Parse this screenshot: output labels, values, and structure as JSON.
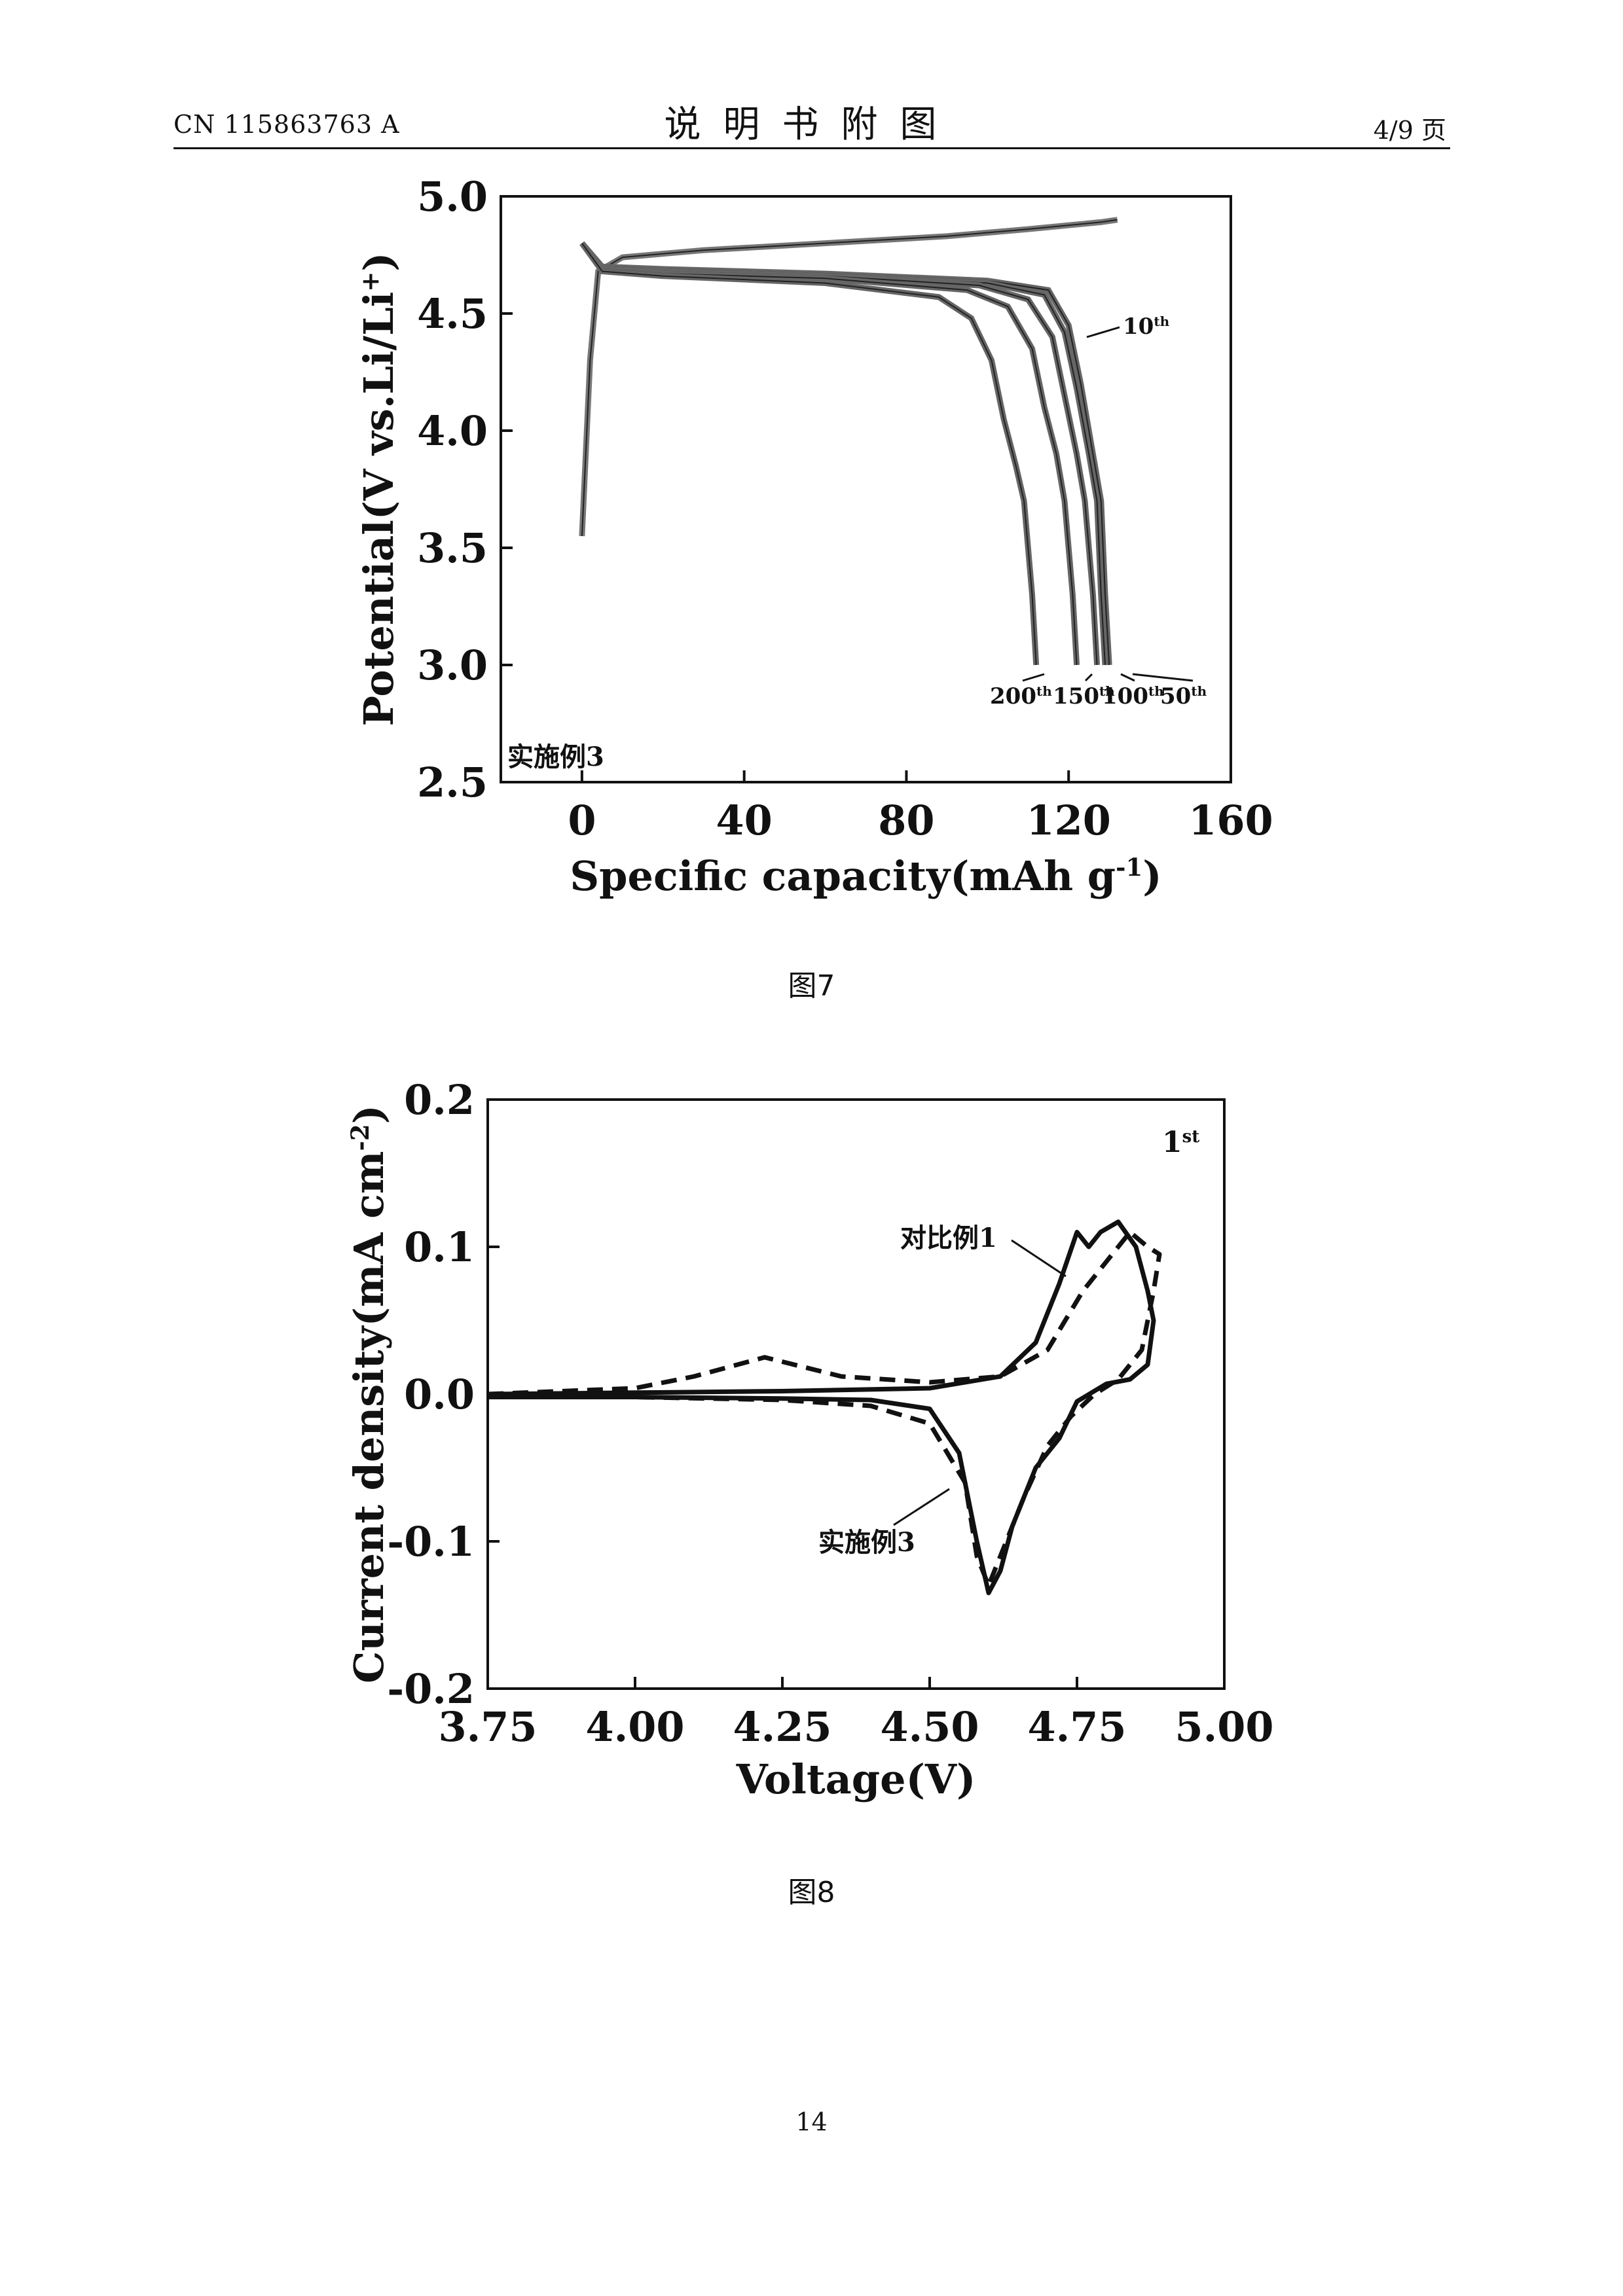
{
  "header": {
    "patent_number": "CN 115863763 A",
    "title": "说明书附图",
    "page_ratio": "4/9 页"
  },
  "page_number": "14",
  "chart_data": [
    {
      "type": "line",
      "caption": "图7",
      "xlabel": "Specific capacity(mAh g",
      "xlabel_sup": "-1",
      "xlabel_tail": ")",
      "ylabel": "Potential(V vs.Li/Li",
      "ylabel_sup": "+",
      "ylabel_tail": ")",
      "xlim": [
        -20,
        160
      ],
      "ylim": [
        2.5,
        5.0
      ],
      "xticks": [
        "0",
        "40",
        "80",
        "120",
        "160"
      ],
      "yticks": [
        "2.5",
        "3.0",
        "3.5",
        "4.0",
        "4.5",
        "5.0"
      ],
      "inset_label": "实施例3",
      "cycle_labels": [
        {
          "base": "10",
          "sup": "th"
        },
        {
          "base": "200",
          "sup": "th"
        },
        {
          "base": "150",
          "sup": "th"
        },
        {
          "base": "100",
          "sup": "th"
        },
        {
          "base": "50",
          "sup": "th"
        }
      ],
      "series": [
        {
          "cycle": 10,
          "charge_x": [
            0,
            2,
            4,
            10,
            30,
            60,
            90,
            110,
            128,
            132
          ],
          "charge_y": [
            3.55,
            4.3,
            4.68,
            4.74,
            4.77,
            4.8,
            4.83,
            4.86,
            4.89,
            4.9
          ],
          "discharge_x": [
            0,
            5,
            20,
            60,
            100,
            115,
            120,
            123,
            126,
            128,
            129,
            130
          ],
          "discharge_y": [
            4.8,
            4.7,
            4.69,
            4.67,
            4.64,
            4.6,
            4.45,
            4.2,
            3.9,
            3.7,
            3.3,
            3.0
          ]
        },
        {
          "cycle": 50,
          "discharge_x": [
            0,
            5,
            20,
            60,
            100,
            114,
            119,
            122,
            125,
            127,
            128,
            129
          ],
          "discharge_y": [
            4.8,
            4.69,
            4.68,
            4.66,
            4.63,
            4.58,
            4.42,
            4.18,
            3.9,
            3.7,
            3.3,
            3.0
          ]
        },
        {
          "cycle": 100,
          "discharge_x": [
            0,
            5,
            20,
            60,
            98,
            110,
            116,
            119,
            122,
            124,
            126,
            127
          ],
          "discharge_y": [
            4.8,
            4.69,
            4.68,
            4.66,
            4.62,
            4.56,
            4.4,
            4.15,
            3.9,
            3.7,
            3.3,
            3.0
          ]
        },
        {
          "cycle": 150,
          "discharge_x": [
            0,
            5,
            20,
            60,
            95,
            105,
            111,
            114,
            117,
            119,
            121,
            122
          ],
          "discharge_y": [
            4.8,
            4.69,
            4.67,
            4.65,
            4.6,
            4.53,
            4.35,
            4.1,
            3.9,
            3.7,
            3.3,
            3.0
          ]
        },
        {
          "cycle": 200,
          "discharge_x": [
            0,
            5,
            20,
            60,
            88,
            96,
            101,
            104,
            107,
            109,
            111,
            112
          ],
          "discharge_y": [
            4.8,
            4.68,
            4.66,
            4.63,
            4.57,
            4.48,
            4.3,
            4.05,
            3.85,
            3.7,
            3.3,
            3.0
          ]
        }
      ]
    },
    {
      "type": "line",
      "caption": "图8",
      "xlabel": "Voltage(V)",
      "ylabel": "Current density(mA cm",
      "ylabel_sup": "-2",
      "ylabel_tail": ")",
      "xlim": [
        3.75,
        5.0
      ],
      "ylim": [
        -0.2,
        0.2
      ],
      "xticks": [
        "3.75",
        "4.00",
        "4.25",
        "4.50",
        "4.75",
        "5.00"
      ],
      "yticks": [
        "-0.2",
        "-0.1",
        "0.0",
        "0.1",
        "0.2"
      ],
      "corner_label": {
        "base": "1",
        "sup": "st"
      },
      "annotations": [
        "对比例1",
        "实施例3"
      ],
      "series": [
        {
          "style": "solid",
          "x": [
            3.75,
            4.0,
            4.25,
            4.5,
            4.62,
            4.68,
            4.72,
            4.75,
            4.77,
            4.79,
            4.82,
            4.85,
            4.87,
            4.88,
            4.87,
            4.84,
            4.8,
            4.75,
            4.72,
            4.68,
            4.64,
            4.62,
            4.6,
            4.58,
            4.55,
            4.5,
            4.4,
            4.25,
            4.0,
            3.75
          ],
          "y": [
            0.0,
            0.001,
            0.002,
            0.004,
            0.012,
            0.035,
            0.075,
            0.11,
            0.1,
            0.11,
            0.117,
            0.1,
            0.07,
            0.05,
            0.02,
            0.01,
            0.007,
            -0.005,
            -0.03,
            -0.05,
            -0.09,
            -0.12,
            -0.135,
            -0.1,
            -0.04,
            -0.01,
            -0.004,
            -0.003,
            -0.002,
            -0.002
          ]
        },
        {
          "style": "dashed",
          "x": [
            3.75,
            4.0,
            4.1,
            4.22,
            4.35,
            4.5,
            4.62,
            4.7,
            4.76,
            4.8,
            4.84,
            4.87,
            4.89,
            4.88,
            4.86,
            4.82,
            4.78,
            4.74,
            4.7,
            4.66,
            4.63,
            4.6,
            4.58,
            4.56,
            4.5,
            4.4,
            4.25,
            4.0,
            3.75
          ],
          "y": [
            0.0,
            0.004,
            0.012,
            0.025,
            0.012,
            0.008,
            0.012,
            0.03,
            0.07,
            0.09,
            0.11,
            0.1,
            0.095,
            0.07,
            0.03,
            0.01,
            0.0,
            -0.015,
            -0.035,
            -0.07,
            -0.1,
            -0.13,
            -0.11,
            -0.06,
            -0.02,
            -0.008,
            -0.004,
            -0.002,
            -0.002
          ]
        }
      ]
    }
  ]
}
